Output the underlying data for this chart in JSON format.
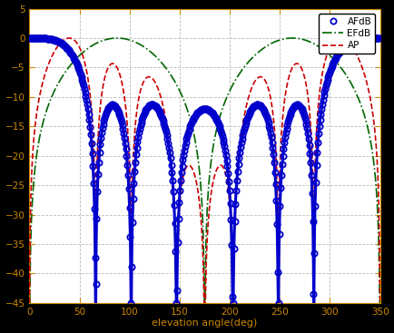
{
  "xlabel": "elevation angle(deg)",
  "xlim": [
    0,
    350
  ],
  "ylim": [
    -45,
    5
  ],
  "xticks": [
    0,
    50,
    100,
    150,
    200,
    250,
    300,
    350
  ],
  "yticks": [
    5,
    0,
    -5,
    -10,
    -15,
    -20,
    -25,
    -30,
    -35,
    -40,
    -45
  ],
  "outer_bg": "#000000",
  "plot_bg": "#ffffff",
  "grid_color": "#aaaaaa",
  "af_color": "#0000cc",
  "ef_color": "#006600",
  "ap_color": "#cc0000",
  "tick_label_color": "#cc8800",
  "spine_color": "#cc8800",
  "legend_labels": [
    "AFdB",
    "EFdB",
    "AP"
  ],
  "N": 4,
  "d": 0.4,
  "psi_shift_factor": 1.0,
  "marker_step": 15,
  "figsize": [
    4.34,
    3.67
  ],
  "dpi": 100
}
